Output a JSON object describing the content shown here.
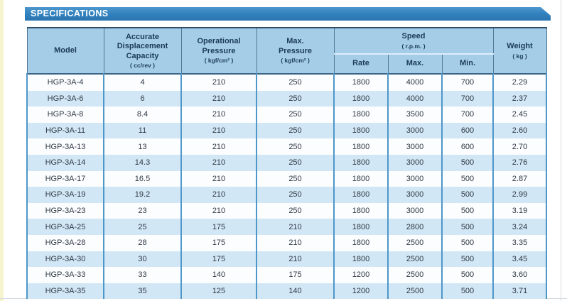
{
  "title_bar": {
    "label": "SPECIFICATIONS"
  },
  "table": {
    "headers": {
      "model": "Model",
      "capacity_label": "Accurate\nDisplacement\nCapacity",
      "capacity_unit": "( cc/rev )",
      "op_pressure_label": "Operational\nPressure",
      "op_pressure_unit": "( kgf/cm² )",
      "max_pressure_label": "Max.\nPressure",
      "max_pressure_unit": "( kgf/cm² )",
      "speed_label": "Speed",
      "speed_unit": "( r.p.m. )",
      "rate": "Rate",
      "max": "Max.",
      "min": "Min.",
      "weight_label": "Weight",
      "weight_unit": "( kg )"
    },
    "rows": [
      [
        "HGP-3A-4",
        "4",
        "210",
        "250",
        "1800",
        "4000",
        "700",
        "2.29"
      ],
      [
        "HGP-3A-6",
        "6",
        "210",
        "250",
        "1800",
        "4000",
        "700",
        "2.37"
      ],
      [
        "HGP-3A-8",
        "8.4",
        "210",
        "250",
        "1800",
        "3500",
        "700",
        "2.45"
      ],
      [
        "HGP-3A-11",
        "11",
        "210",
        "250",
        "1800",
        "3000",
        "600",
        "2.60"
      ],
      [
        "HGP-3A-13",
        "13",
        "210",
        "250",
        "1800",
        "3000",
        "600",
        "2.70"
      ],
      [
        "HGP-3A-14",
        "14.3",
        "210",
        "250",
        "1800",
        "3000",
        "500",
        "2.76"
      ],
      [
        "HGP-3A-17",
        "16.5",
        "210",
        "250",
        "1800",
        "3000",
        "500",
        "2.87"
      ],
      [
        "HGP-3A-19",
        "19.2",
        "210",
        "250",
        "1800",
        "3000",
        "500",
        "2.99"
      ],
      [
        "HGP-3A-23",
        "23",
        "210",
        "250",
        "1800",
        "3000",
        "500",
        "3.19"
      ],
      [
        "HGP-3A-25",
        "25",
        "175",
        "210",
        "1800",
        "2800",
        "500",
        "3.24"
      ],
      [
        "HGP-3A-28",
        "28",
        "175",
        "210",
        "1800",
        "2500",
        "500",
        "3.35"
      ],
      [
        "HGP-3A-30",
        "30",
        "175",
        "210",
        "1800",
        "2500",
        "500",
        "3.45"
      ],
      [
        "HGP-3A-33",
        "33",
        "140",
        "175",
        "1200",
        "2500",
        "500",
        "3.60"
      ],
      [
        "HGP-3A-35",
        "35",
        "125",
        "140",
        "1200",
        "2500",
        "500",
        "3.71"
      ]
    ]
  },
  "colors": {
    "title_bar_blue": "#3181be",
    "header_bg": "#a6cde8",
    "row_alt_bg": "#d2e7f5",
    "row_bg": "#fcfdff",
    "body_grid_blue": "#4e97c9",
    "header_grid": "#4f7896",
    "header_text": "#1b3c59",
    "body_text": "#2e3944",
    "left_strip_yellow": "#f6f4cf"
  }
}
